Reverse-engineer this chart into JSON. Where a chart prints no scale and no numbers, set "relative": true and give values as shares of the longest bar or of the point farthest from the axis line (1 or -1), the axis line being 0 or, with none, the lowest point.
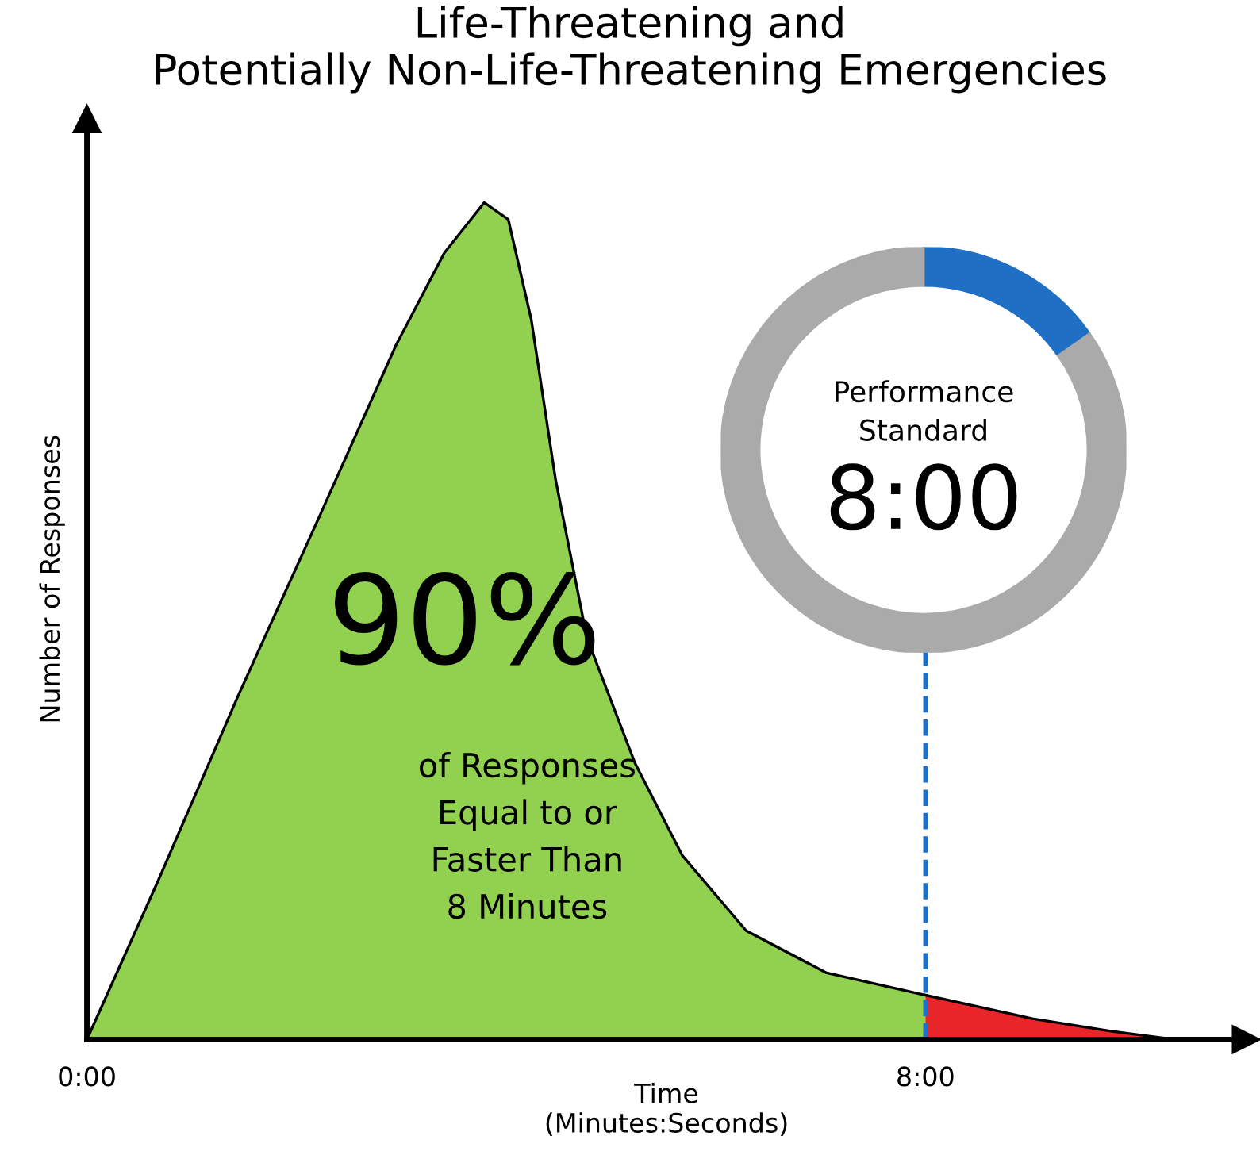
{
  "chart_data": {
    "type": "area",
    "title": "Life-Threatening and\nPotentially Non-Life-Threatening Emergencies",
    "xlabel": "Time\n(Minutes:Seconds)",
    "ylabel": "Number of Responses",
    "relative": true,
    "xlim": [
      0,
      11.06
    ],
    "xticks": [
      {
        "value": 0,
        "label": "0:00"
      },
      {
        "value": 8,
        "label": "8:00"
      }
    ],
    "series": [
      {
        "color": "#92d050",
        "x": [
          0,
          0.68,
          1.44,
          2.2,
          2.95,
          3.41,
          3.79,
          4.02,
          4.24,
          4.47,
          4.77,
          5.23,
          5.68,
          6.29,
          7.05,
          8
        ],
        "values": [
          0,
          0.19,
          0.41,
          0.62,
          0.83,
          0.94,
          1.0,
          0.98,
          0.86,
          0.67,
          0.48,
          0.33,
          0.22,
          0.13,
          0.08,
          0.053
        ]
      },
      {
        "color": "#e8262a",
        "x": [
          8,
          9.02,
          9.77,
          10.38
        ],
        "values": [
          0.053,
          0.025,
          0.01,
          0
        ]
      }
    ],
    "ref_lines": [
      {
        "axis": "x",
        "value": 8,
        "color": "#1f6fc5",
        "line_style": "dashed"
      }
    ],
    "annotations": [
      "90%",
      "of Responses\nEqual to or\nFaster Than\n8 Minutes",
      "Performance\nStandard",
      "8:00"
    ],
    "grid": false
  }
}
